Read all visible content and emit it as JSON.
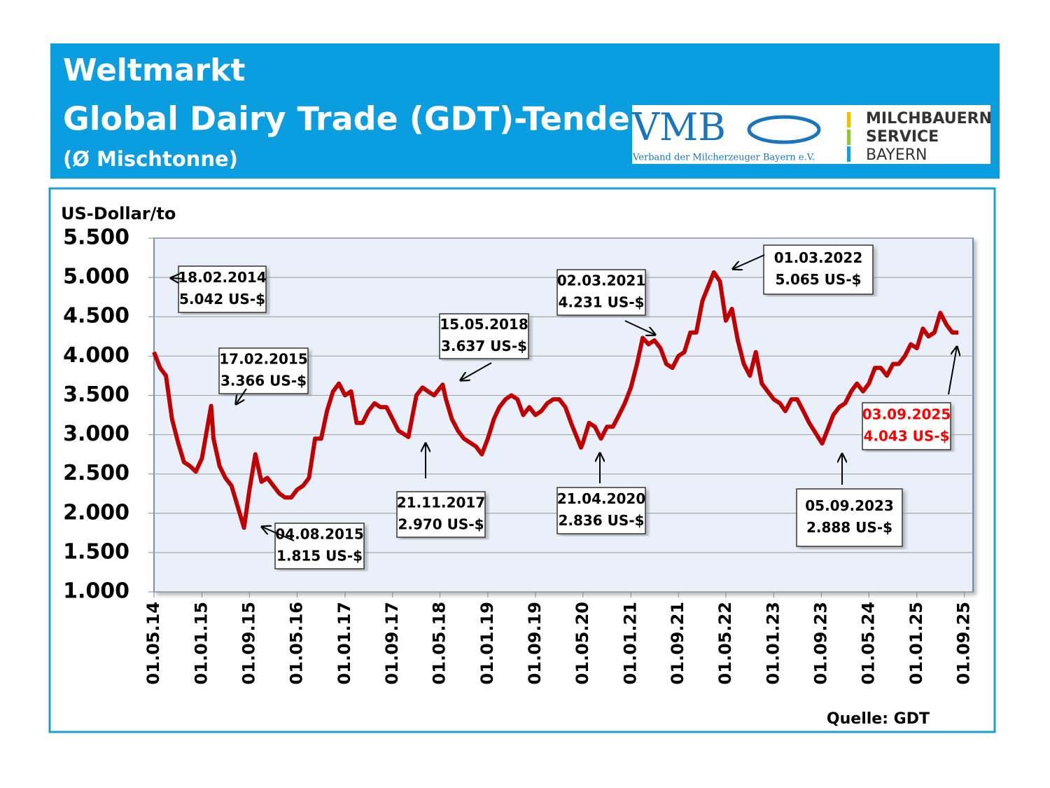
{
  "header": {
    "title": "Weltmarkt",
    "subtitle": "Global Dairy Trade (GDT)-Tender",
    "note": "(Ø Mischtonne)"
  },
  "logo": {
    "vmb": "VMB",
    "vmb_name": "Verband der Milcherzeuger Bayern e.V.",
    "service_lines": [
      "MILCHBAUERN",
      "SERVICE",
      "BAYERN"
    ]
  },
  "chart_data": {
    "type": "line",
    "ylabel": "US-Dollar/to",
    "source": "Quelle: GDT",
    "color": "#c00000",
    "grid": true,
    "xlim": [
      "2014-05-01",
      "2025-10-15"
    ],
    "ylim": [
      1000,
      5500
    ],
    "yticks": [
      {
        "value": 1000,
        "label": "1.000"
      },
      {
        "value": 1500,
        "label": "1.500"
      },
      {
        "value": 2000,
        "label": "2.000"
      },
      {
        "value": 2500,
        "label": "2.500"
      },
      {
        "value": 3000,
        "label": "3.000"
      },
      {
        "value": 3500,
        "label": "3.500"
      },
      {
        "value": 4000,
        "label": "4.000"
      },
      {
        "value": 4500,
        "label": "4.500"
      },
      {
        "value": 5000,
        "label": "5.000"
      },
      {
        "value": 5500,
        "label": "5.500"
      }
    ],
    "xticks": [
      {
        "value": "2014-05-01",
        "label": "01.05.14"
      },
      {
        "value": "2015-01-01",
        "label": "01.01.15"
      },
      {
        "value": "2015-09-01",
        "label": "01.09.15"
      },
      {
        "value": "2016-05-01",
        "label": "01.05.16"
      },
      {
        "value": "2017-01-01",
        "label": "01.01.17"
      },
      {
        "value": "2017-09-01",
        "label": "01.09.17"
      },
      {
        "value": "2018-05-01",
        "label": "01.05.18"
      },
      {
        "value": "2019-01-01",
        "label": "01.01.19"
      },
      {
        "value": "2019-09-01",
        "label": "01.09.19"
      },
      {
        "value": "2020-05-01",
        "label": "01.05.20"
      },
      {
        "value": "2021-01-01",
        "label": "01.01.21"
      },
      {
        "value": "2021-09-01",
        "label": "01.09.21"
      },
      {
        "value": "2022-05-01",
        "label": "01.05.22"
      },
      {
        "value": "2023-01-01",
        "label": "01.01.23"
      },
      {
        "value": "2023-09-01",
        "label": "01.09.23"
      },
      {
        "value": "2024-05-01",
        "label": "01.05.24"
      },
      {
        "value": "2025-01-01",
        "label": "01.01.25"
      },
      {
        "value": "2025-09-01",
        "label": "01.09.25"
      }
    ],
    "x": [
      "2014-05-01",
      "2014-06-01",
      "2014-07-01",
      "2014-08-01",
      "2014-09-01",
      "2014-10-01",
      "2014-11-01",
      "2014-12-01",
      "2015-01-01",
      "2015-02-17",
      "2015-03-01",
      "2015-04-01",
      "2015-05-01",
      "2015-06-01",
      "2015-07-01",
      "2015-08-04",
      "2015-09-01",
      "2015-10-01",
      "2015-11-01",
      "2015-12-01",
      "2016-01-01",
      "2016-02-01",
      "2016-03-01",
      "2016-04-01",
      "2016-05-01",
      "2016-06-01",
      "2016-07-01",
      "2016-08-01",
      "2016-09-01",
      "2016-10-01",
      "2016-11-01",
      "2016-12-01",
      "2017-01-01",
      "2017-02-01",
      "2017-03-01",
      "2017-04-01",
      "2017-05-01",
      "2017-06-01",
      "2017-07-01",
      "2017-08-01",
      "2017-09-01",
      "2017-10-01",
      "2017-11-21",
      "2017-12-01",
      "2018-01-01",
      "2018-02-01",
      "2018-03-01",
      "2018-04-01",
      "2018-05-15",
      "2018-06-01",
      "2018-07-01",
      "2018-08-01",
      "2018-09-01",
      "2018-10-01",
      "2018-11-01",
      "2018-12-01",
      "2019-01-01",
      "2019-02-01",
      "2019-03-01",
      "2019-04-01",
      "2019-05-01",
      "2019-06-01",
      "2019-07-01",
      "2019-08-01",
      "2019-09-01",
      "2019-10-01",
      "2019-11-01",
      "2019-12-01",
      "2020-01-01",
      "2020-02-01",
      "2020-03-01",
      "2020-04-21",
      "2020-05-01",
      "2020-06-01",
      "2020-07-01",
      "2020-08-01",
      "2020-09-01",
      "2020-10-01",
      "2020-11-01",
      "2020-12-01",
      "2021-01-01",
      "2021-02-01",
      "2021-03-02",
      "2021-04-01",
      "2021-05-01",
      "2021-06-01",
      "2021-07-01",
      "2021-08-01",
      "2021-09-01",
      "2021-10-01",
      "2021-11-01",
      "2021-12-01",
      "2022-01-01",
      "2022-03-01",
      "2022-04-01",
      "2022-05-01",
      "2022-06-01",
      "2022-07-01",
      "2022-08-01",
      "2022-09-01",
      "2022-10-01",
      "2022-11-01",
      "2022-12-01",
      "2023-01-01",
      "2023-02-01",
      "2023-03-01",
      "2023-04-01",
      "2023-05-01",
      "2023-06-01",
      "2023-07-01",
      "2023-09-05",
      "2023-10-01",
      "2023-11-01",
      "2023-12-01",
      "2024-01-01",
      "2024-02-01",
      "2024-03-01",
      "2024-04-01",
      "2024-05-01",
      "2024-06-01",
      "2024-07-01",
      "2024-08-01",
      "2024-09-01",
      "2024-10-01",
      "2024-11-01",
      "2024-12-01",
      "2025-01-01",
      "2025-02-01",
      "2025-03-01",
      "2025-04-01",
      "2025-05-01",
      "2025-06-01",
      "2025-07-01",
      "2025-08-01"
    ],
    "values": [
      4050,
      3850,
      3750,
      3200,
      2900,
      2650,
      2600,
      2530,
      2700,
      3366,
      2950,
      2600,
      2450,
      2350,
      2100,
      1815,
      2300,
      2750,
      2400,
      2450,
      2350,
      2250,
      2200,
      2200,
      2300,
      2350,
      2450,
      2950,
      2950,
      3300,
      3550,
      3650,
      3500,
      3550,
      3150,
      3150,
      3300,
      3400,
      3350,
      3350,
      3200,
      3050,
      2970,
      3100,
      3500,
      3600,
      3550,
      3500,
      3637,
      3450,
      3200,
      3050,
      2950,
      2900,
      2850,
      2750,
      2950,
      3200,
      3350,
      3450,
      3500,
      3450,
      3250,
      3350,
      3250,
      3300,
      3400,
      3450,
      3450,
      3350,
      3150,
      2836,
      2900,
      3150,
      3100,
      2950,
      3100,
      3100,
      3250,
      3400,
      3600,
      3900,
      4231,
      4150,
      4200,
      4100,
      3900,
      3850,
      4000,
      4050,
      4300,
      4300,
      4700,
      5065,
      4950,
      4450,
      4600,
      4200,
      3900,
      3750,
      4050,
      3650,
      3550,
      3450,
      3400,
      3300,
      3450,
      3450,
      3300,
      3150,
      2888,
      3050,
      3250,
      3350,
      3400,
      3550,
      3650,
      3550,
      3650,
      3850,
      3850,
      3750,
      3900,
      3900,
      4000,
      4150,
      4100,
      4350,
      4250,
      4300,
      4550,
      4400,
      4300,
      4300
    ],
    "annotations": [
      {
        "lines": [
          "18.02.2014",
          "5.042 US-$"
        ]
      },
      {
        "lines": [
          "17.02.2015",
          "3.366 US-$"
        ]
      },
      {
        "lines": [
          "04.08.2015",
          "1.815 US-$"
        ]
      },
      {
        "lines": [
          "21.11.2017",
          "2.970 US-$"
        ]
      },
      {
        "lines": [
          "15.05.2018",
          "3.637 US-$"
        ]
      },
      {
        "lines": [
          "21.04.2020",
          "2.836 US-$"
        ]
      },
      {
        "lines": [
          "02.03.2021",
          "4.231 US-$"
        ]
      },
      {
        "lines": [
          "01.03.2022",
          "5.065 US-$"
        ]
      },
      {
        "lines": [
          "05.09.2023",
          "2.888 US-$"
        ]
      },
      {
        "lines": [
          "03.09.2025",
          "4.043 US-$"
        ],
        "color": "#ff0000"
      }
    ]
  }
}
